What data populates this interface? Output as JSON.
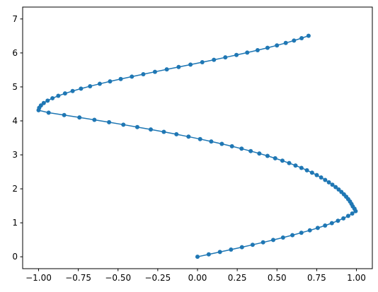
{
  "chart_data": {
    "type": "line",
    "title": "",
    "xlabel": "",
    "ylabel": "",
    "xlim": [
      -1.1,
      1.1
    ],
    "ylim": [
      -0.35,
      7.35
    ],
    "grid": false,
    "x_ticks": [
      {
        "value": -1.0,
        "label": "−1.00"
      },
      {
        "value": -0.75,
        "label": "−0.75"
      },
      {
        "value": -0.5,
        "label": "−0.50"
      },
      {
        "value": -0.25,
        "label": "−0.25"
      },
      {
        "value": 0.0,
        "label": "0.00"
      },
      {
        "value": 0.25,
        "label": "0.25"
      },
      {
        "value": 0.5,
        "label": "0.50"
      },
      {
        "value": 0.75,
        "label": "0.75"
      },
      {
        "value": 1.0,
        "label": "1.00"
      }
    ],
    "y_ticks": [
      {
        "value": 0,
        "label": "0"
      },
      {
        "value": 1,
        "label": "1"
      },
      {
        "value": 2,
        "label": "2"
      },
      {
        "value": 3,
        "label": "3"
      },
      {
        "value": 4,
        "label": "4"
      },
      {
        "value": 5,
        "label": "5"
      },
      {
        "value": 6,
        "label": "6"
      },
      {
        "value": 7,
        "label": "7"
      }
    ],
    "series": [
      {
        "color": "#1f77b4",
        "marker": "circle",
        "x": [
          0.0,
          0.0707,
          0.1411,
          0.2108,
          0.2795,
          0.3469,
          0.4127,
          0.4765,
          0.5382,
          0.5972,
          0.6535,
          0.7066,
          0.7565,
          0.8027,
          0.8452,
          0.8837,
          0.918,
          0.9481,
          0.9737,
          0.9948,
          0.9878,
          0.9768,
          0.9689,
          0.9594,
          0.9482,
          0.9355,
          0.9212,
          0.9054,
          0.888,
          0.8691,
          0.8486,
          0.8266,
          0.8032,
          0.7779,
          0.7504,
          0.7207,
          0.6885,
          0.6539,
          0.6167,
          0.5768,
          0.5342,
          0.4888,
          0.4405,
          0.3891,
          0.3348,
          0.2774,
          0.2169,
          0.1532,
          0.0865,
          0.0166,
          -0.0564,
          -0.1325,
          -0.2117,
          -0.2939,
          -0.3788,
          -0.4663,
          -0.5563,
          -0.6485,
          -0.7427,
          -0.8387,
          -0.9365,
          -0.9999,
          -0.9959,
          -0.985,
          -0.9673,
          -0.943,
          -0.9124,
          -0.8757,
          -0.8333,
          -0.7856,
          -0.733,
          -0.6759,
          -0.6149,
          -0.5504,
          -0.4829,
          -0.4129,
          -0.341,
          -0.2676,
          -0.1933,
          -0.1186,
          -0.044,
          0.0301,
          0.1033,
          0.1751,
          0.2451,
          0.3129,
          0.3782,
          0.4405,
          0.4997,
          0.5553,
          0.6072,
          0.655,
          0.6987
        ],
        "y": [
          0.0,
          0.0707,
          0.1414,
          0.2121,
          0.2828,
          0.3535,
          0.4242,
          0.4949,
          0.5657,
          0.6364,
          0.7071,
          0.7778,
          0.8485,
          0.9192,
          0.9899,
          1.0606,
          1.1313,
          1.202,
          1.2727,
          1.3434,
          1.4141,
          1.4848,
          1.5555,
          1.6262,
          1.6969,
          1.7677,
          1.8384,
          1.9091,
          1.9798,
          2.0505,
          2.1212,
          2.1919,
          2.2626,
          2.3333,
          2.404,
          2.4747,
          2.5454,
          2.6161,
          2.6868,
          2.7575,
          2.8282,
          2.899,
          2.9697,
          3.0404,
          3.1111,
          3.1818,
          3.2525,
          3.3232,
          3.3939,
          3.4646,
          3.5353,
          3.606,
          3.6767,
          3.7474,
          3.8181,
          3.8888,
          3.9595,
          4.0302,
          4.101,
          4.1717,
          4.2424,
          4.3131,
          4.3838,
          4.4545,
          4.5252,
          4.5959,
          4.6666,
          4.7373,
          4.808,
          4.8787,
          4.9494,
          5.0201,
          5.0908,
          5.1615,
          5.2323,
          5.303,
          5.3737,
          5.4444,
          5.5151,
          5.5858,
          5.6565,
          5.7272,
          5.7979,
          5.8686,
          5.9393,
          6.01,
          6.0807,
          6.1514,
          6.2221,
          6.2928,
          6.3636,
          6.4343,
          6.505
        ]
      }
    ]
  }
}
